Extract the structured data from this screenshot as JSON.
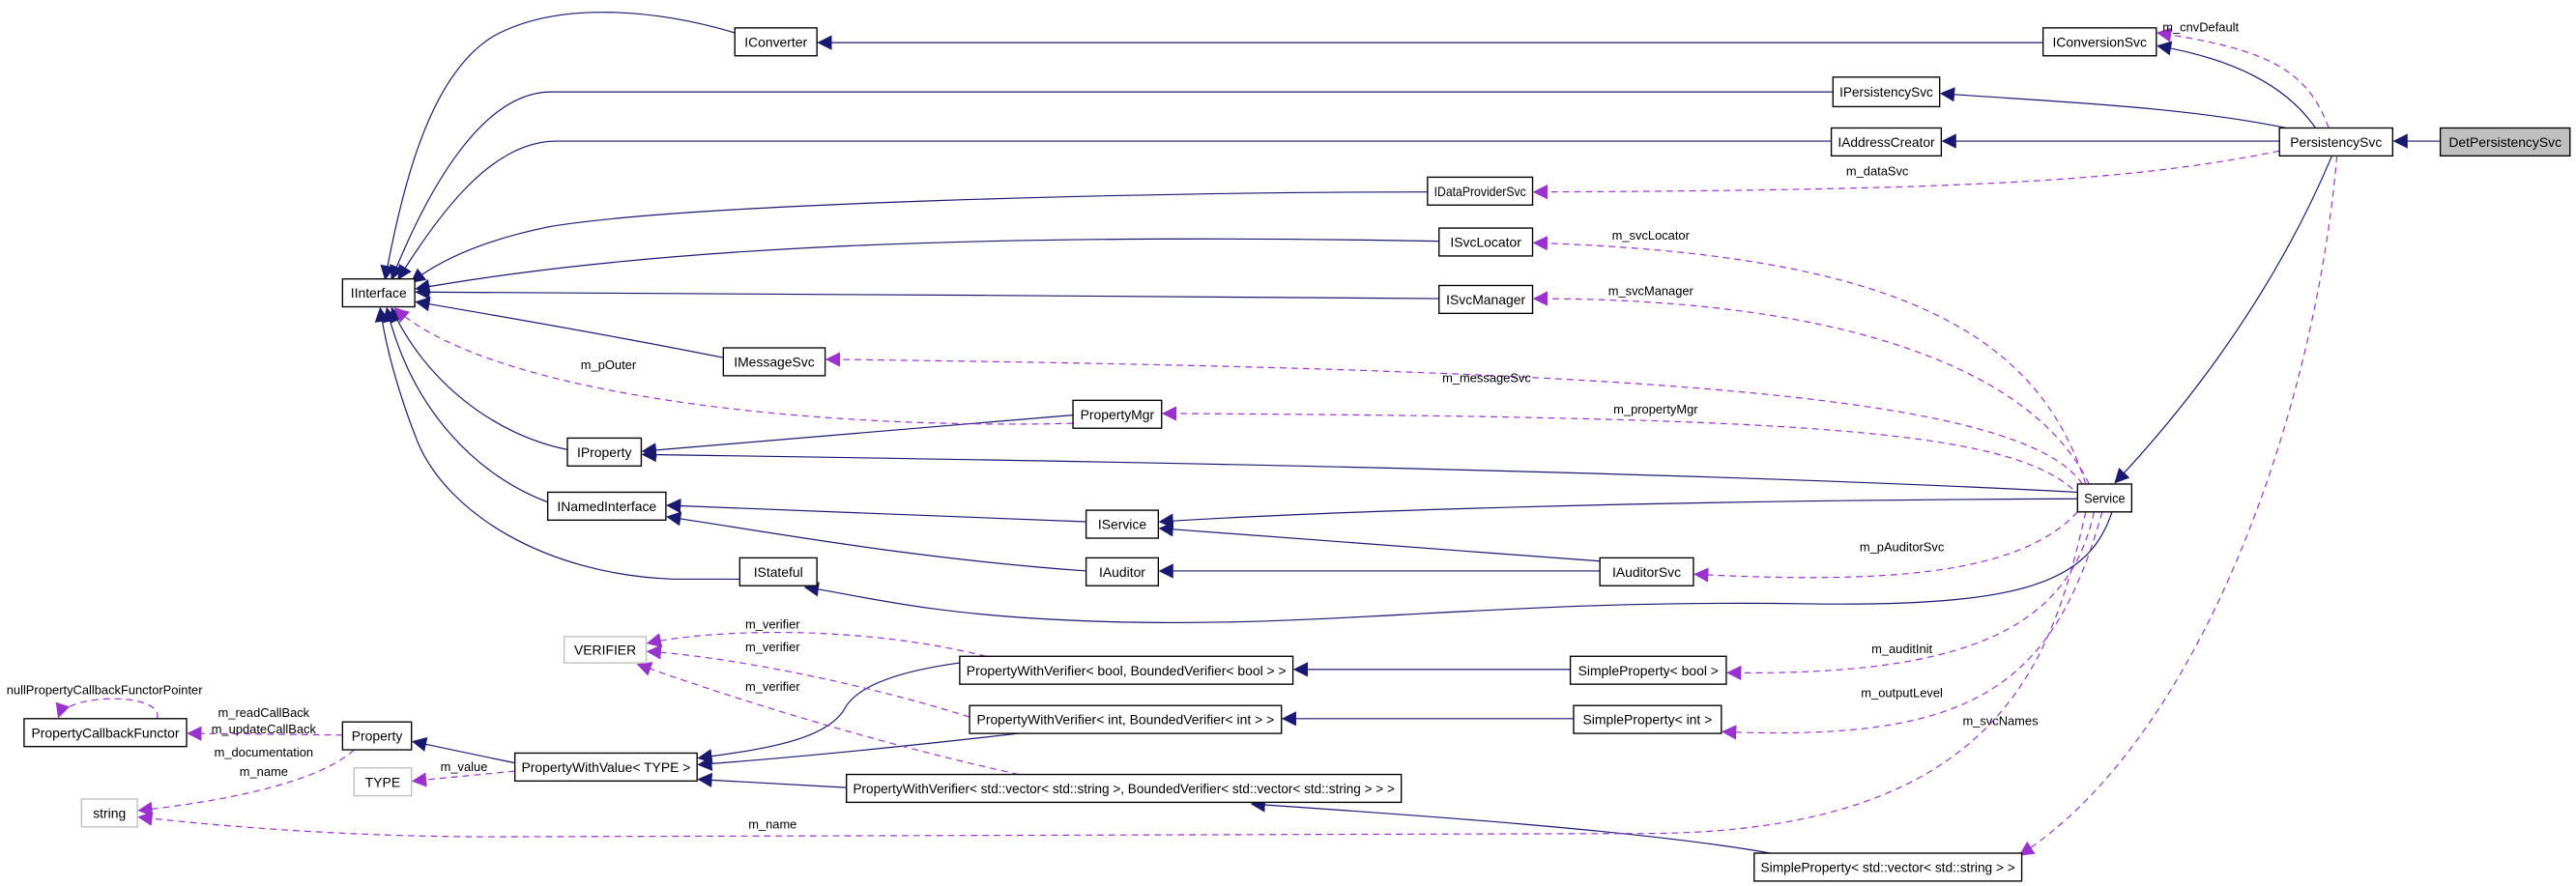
{
  "colors": {
    "inheritance_edge": "#191970",
    "usage_edge": "#9a32cd",
    "focus_fill": "#bfbfbf",
    "incomplete_border": "#bfbfbf"
  },
  "nodes": [
    {
      "id": "IConverter",
      "label": "IConverter",
      "style": "normal"
    },
    {
      "id": "IConversionSvc",
      "label": "IConversionSvc",
      "style": "normal"
    },
    {
      "id": "IPersistencySvc",
      "label": "IPersistencySvc",
      "style": "normal"
    },
    {
      "id": "IAddressCreator",
      "label": "IAddressCreator",
      "style": "normal"
    },
    {
      "id": "PersistencySvc",
      "label": "PersistencySvc",
      "style": "normal"
    },
    {
      "id": "DetPersistencySvc",
      "label": "DetPersistencySvc",
      "style": "focus"
    },
    {
      "id": "IDataProviderSvc",
      "label": "IDataProviderSvc",
      "style": "normal"
    },
    {
      "id": "ISvcLocator",
      "label": "ISvcLocator",
      "style": "normal"
    },
    {
      "id": "IInterface",
      "label": "IInterface",
      "style": "normal"
    },
    {
      "id": "ISvcManager",
      "label": "ISvcManager",
      "style": "normal"
    },
    {
      "id": "IMessageSvc",
      "label": "IMessageSvc",
      "style": "normal"
    },
    {
      "id": "PropertyMgr",
      "label": "PropertyMgr",
      "style": "normal"
    },
    {
      "id": "IProperty",
      "label": "IProperty",
      "style": "normal"
    },
    {
      "id": "Service",
      "label": "Service",
      "style": "normal"
    },
    {
      "id": "INamedInterface",
      "label": "INamedInterface",
      "style": "normal"
    },
    {
      "id": "IService",
      "label": "IService",
      "style": "normal"
    },
    {
      "id": "IAuditor",
      "label": "IAuditor",
      "style": "normal"
    },
    {
      "id": "IAuditorSvc",
      "label": "IAuditorSvc",
      "style": "normal"
    },
    {
      "id": "IStateful",
      "label": "IStateful",
      "style": "normal"
    },
    {
      "id": "VERIFIER",
      "label": "VERIFIER",
      "style": "incomplete"
    },
    {
      "id": "PWVbool",
      "label": "PropertyWithVerifier< bool, BoundedVerifier< bool > >",
      "style": "normal"
    },
    {
      "id": "SPbool",
      "label": "SimpleProperty< bool >",
      "style": "normal"
    },
    {
      "id": "PWVint",
      "label": "PropertyWithVerifier< int, BoundedVerifier< int > >",
      "style": "normal"
    },
    {
      "id": "SPint",
      "label": "SimpleProperty< int >",
      "style": "normal"
    },
    {
      "id": "PropertyCallbackFunctor",
      "label": "PropertyCallbackFunctor",
      "style": "normal"
    },
    {
      "id": "Property",
      "label": "Property",
      "style": "normal"
    },
    {
      "id": "PropertyWithValue",
      "label": "PropertyWithValue< TYPE >",
      "style": "normal"
    },
    {
      "id": "TYPE",
      "label": "TYPE",
      "style": "incomplete"
    },
    {
      "id": "PWVvec",
      "label": "PropertyWithVerifier< std::vector< std::string >, BoundedVerifier< std::vector< std::string > > >",
      "style": "normal"
    },
    {
      "id": "string",
      "label": "string",
      "style": "incomplete"
    },
    {
      "id": "SPvec",
      "label": "SimpleProperty< std::vector< std::string > >",
      "style": "normal"
    }
  ],
  "edges": [
    {
      "from": "IConverter",
      "to": "IInterface",
      "kind": "inheritance"
    },
    {
      "from": "IPersistencySvc",
      "to": "IInterface",
      "kind": "inheritance"
    },
    {
      "from": "IAddressCreator",
      "to": "IInterface",
      "kind": "inheritance"
    },
    {
      "from": "IDataProviderSvc",
      "to": "IInterface",
      "kind": "inheritance"
    },
    {
      "from": "ISvcLocator",
      "to": "IInterface",
      "kind": "inheritance"
    },
    {
      "from": "ISvcManager",
      "to": "IInterface",
      "kind": "inheritance"
    },
    {
      "from": "IMessageSvc",
      "to": "IInterface",
      "kind": "inheritance"
    },
    {
      "from": "IProperty",
      "to": "IInterface",
      "kind": "inheritance"
    },
    {
      "from": "INamedInterface",
      "to": "IInterface",
      "kind": "inheritance"
    },
    {
      "from": "IStateful",
      "to": "IInterface",
      "kind": "inheritance"
    },
    {
      "from": "IConversionSvc",
      "to": "IConverter",
      "kind": "inheritance"
    },
    {
      "from": "PersistencySvc",
      "to": "IConversionSvc",
      "kind": "inheritance"
    },
    {
      "from": "PersistencySvc",
      "to": "IPersistencySvc",
      "kind": "inheritance"
    },
    {
      "from": "PersistencySvc",
      "to": "IAddressCreator",
      "kind": "inheritance"
    },
    {
      "from": "DetPersistencySvc",
      "to": "PersistencySvc",
      "kind": "inheritance"
    },
    {
      "from": "PersistencySvc",
      "to": "Service",
      "kind": "inheritance"
    },
    {
      "from": "PropertyMgr",
      "to": "IProperty",
      "kind": "inheritance"
    },
    {
      "from": "Service",
      "to": "IProperty",
      "kind": "inheritance"
    },
    {
      "from": "Service",
      "to": "IService",
      "kind": "inheritance"
    },
    {
      "from": "IService",
      "to": "INamedInterface",
      "kind": "inheritance"
    },
    {
      "from": "IAuditor",
      "to": "INamedInterface",
      "kind": "inheritance"
    },
    {
      "from": "IAuditorSvc",
      "to": "IService",
      "kind": "inheritance"
    },
    {
      "from": "IAuditorSvc",
      "to": "IAuditor",
      "kind": "inheritance"
    },
    {
      "from": "Service",
      "to": "IStateful",
      "kind": "inheritance"
    },
    {
      "from": "SPbool",
      "to": "PWVbool",
      "kind": "inheritance"
    },
    {
      "from": "SPint",
      "to": "PWVint",
      "kind": "inheritance"
    },
    {
      "from": "SPvec",
      "to": "PWVvec",
      "kind": "inheritance"
    },
    {
      "from": "PWVbool",
      "to": "PropertyWithValue",
      "kind": "inheritance"
    },
    {
      "from": "PWVint",
      "to": "PropertyWithValue",
      "kind": "inheritance"
    },
    {
      "from": "PWVvec",
      "to": "PropertyWithValue",
      "kind": "inheritance"
    },
    {
      "from": "PropertyWithValue",
      "to": "Property",
      "kind": "inheritance"
    },
    {
      "from": "PersistencySvc",
      "to": "IConversionSvc",
      "kind": "usage",
      "labels": [
        "m_cnvDefault"
      ]
    },
    {
      "from": "PersistencySvc",
      "to": "IDataProviderSvc",
      "kind": "usage",
      "labels": [
        "m_dataSvc"
      ]
    },
    {
      "from": "Service",
      "to": "ISvcLocator",
      "kind": "usage",
      "labels": [
        "m_svcLocator"
      ]
    },
    {
      "from": "Service",
      "to": "ISvcManager",
      "kind": "usage",
      "labels": [
        "m_svcManager"
      ]
    },
    {
      "from": "Service",
      "to": "IMessageSvc",
      "kind": "usage",
      "labels": [
        "m_messageSvc"
      ]
    },
    {
      "from": "Service",
      "to": "PropertyMgr",
      "kind": "usage",
      "labels": [
        "m_propertyMgr"
      ]
    },
    {
      "from": "PropertyMgr",
      "to": "IInterface",
      "kind": "usage",
      "labels": [
        "m_pOuter"
      ]
    },
    {
      "from": "Service",
      "to": "IAuditorSvc",
      "kind": "usage",
      "labels": [
        "m_pAuditorSvc"
      ]
    },
    {
      "from": "Service",
      "to": "SPbool",
      "kind": "usage",
      "labels": [
        "m_auditInit"
      ]
    },
    {
      "from": "Service",
      "to": "SPint",
      "kind": "usage",
      "labels": [
        "m_outputLevel"
      ]
    },
    {
      "from": "PersistencySvc",
      "to": "SPvec",
      "kind": "usage",
      "labels": [
        "m_svcNames"
      ]
    },
    {
      "from": "PWVbool",
      "to": "VERIFIER",
      "kind": "usage",
      "labels": [
        "m_verifier"
      ]
    },
    {
      "from": "PWVint",
      "to": "VERIFIER",
      "kind": "usage",
      "labels": [
        "m_verifier"
      ]
    },
    {
      "from": "PWVvec",
      "to": "VERIFIER",
      "kind": "usage",
      "labels": [
        "m_verifier"
      ]
    },
    {
      "from": "Property",
      "to": "PropertyCallbackFunctor",
      "kind": "usage",
      "labels": [
        "m_readCallBack",
        "m_updateCallBack"
      ]
    },
    {
      "from": "PropertyCallbackFunctor",
      "to": "PropertyCallbackFunctor",
      "kind": "usage",
      "labels": [
        "nullPropertyCallbackFunctorPointer"
      ]
    },
    {
      "from": "Property",
      "to": "string",
      "kind": "usage",
      "labels": [
        "m_documentation",
        "m_name"
      ]
    },
    {
      "from": "PropertyWithValue",
      "to": "TYPE",
      "kind": "usage",
      "labels": [
        "m_value"
      ]
    },
    {
      "from": "Service",
      "to": "string",
      "kind": "usage",
      "labels": [
        "m_name"
      ]
    }
  ]
}
